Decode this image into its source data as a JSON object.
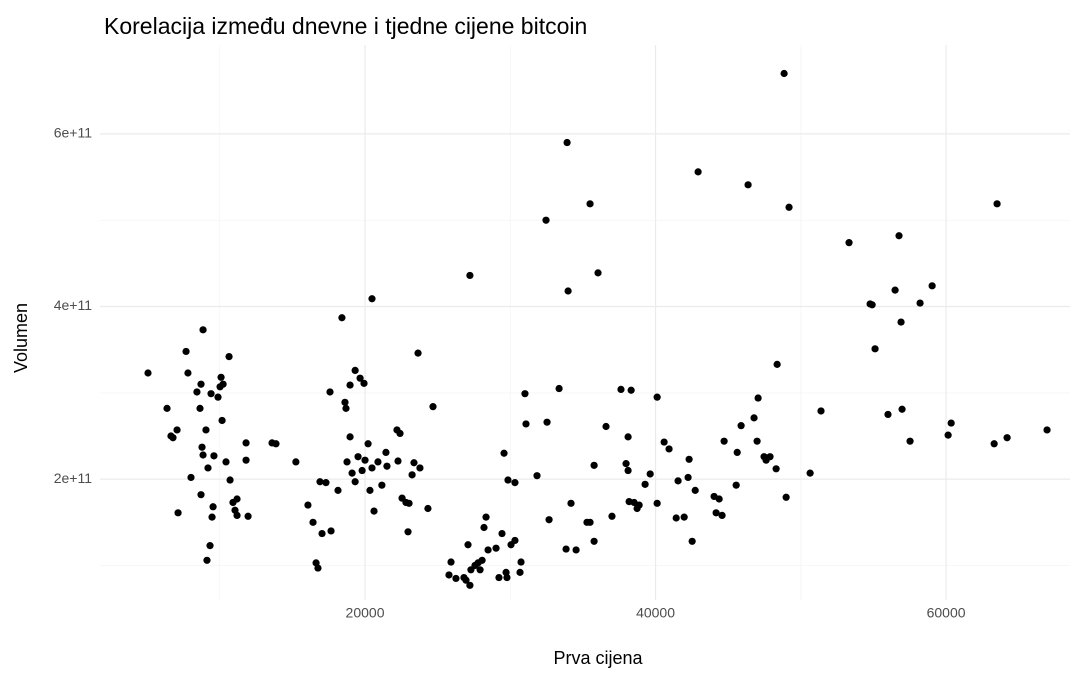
{
  "chart_data": {
    "type": "scatter",
    "title": "Korelacija između dnevne i tjedne cijene bitcoin",
    "x_label": "Prva cijena",
    "y_label": "Volumen",
    "color": "#000000",
    "grid": true,
    "xlim": [
      1756,
      68530
    ],
    "ylim": [
      60000000000,
      703000000000
    ],
    "xticks": [
      20000,
      40000,
      60000
    ],
    "xminor": [
      10000,
      30000,
      50000
    ],
    "yticks": [
      {
        "value": 200000000000,
        "label": "2e+11"
      },
      {
        "value": 400000000000,
        "label": "4e+11"
      },
      {
        "value": 600000000000,
        "label": "6e+11"
      }
    ],
    "yminor": [
      100000000000,
      300000000000,
      500000000000
    ],
    "x": [
      5060,
      6370,
      6640,
      6780,
      7060,
      7130,
      7680,
      7810,
      8020,
      8430,
      8640,
      8710,
      8850,
      8710,
      8780,
      8850,
      9050,
      9120,
      9190,
      9330,
      9400,
      9470,
      9540,
      9600,
      9880,
      10020,
      10090,
      10160,
      10230,
      10430,
      10640,
      10710,
      10910,
      11050,
      11190,
      11190,
      11810,
      11810,
      11950,
      13600,
      13870,
      15240,
      16070,
      16420,
      16630,
      16760,
      16900,
      17040,
      17310,
      17590,
      17660,
      18140,
      18410,
      18620,
      18690,
      18760,
      18970,
      18970,
      19110,
      19320,
      19320,
      19520,
      19660,
      19800,
      19930,
      20000,
      20210,
      20480,
      20340,
      20480,
      20620,
      20890,
      21160,
      21440,
      21510,
      22200,
      22270,
      22410,
      22550,
      22820,
      22960,
      23030,
      23240,
      23370,
      23650,
      23780,
      24330,
      24680,
      25780,
      25920,
      26260,
      26810,
      26950,
      27090,
      27220,
      27220,
      27290,
      27570,
      27780,
      27920,
      28060,
      28190,
      28330,
      28470,
      29020,
      29220,
      29430,
      29570,
      29770,
      29710,
      29840,
      30050,
      30320,
      30320,
      30670,
      30740,
      31010,
      31080,
      31840,
      32460,
      32530,
      32670,
      33360,
      33910,
      33980,
      33840,
      34180,
      34530,
      35280,
      35490,
      35490,
      35770,
      35770,
      36040,
      36590,
      37000,
      37620,
      37970,
      38110,
      38110,
      38180,
      38320,
      38520,
      38730,
      38870,
      39280,
      39630,
      40110,
      40110,
      40590,
      40930,
      41420,
      41550,
      41970,
      42240,
      42310,
      42520,
      42730,
      42930,
      44030,
      44170,
      44380,
      44580,
      44720,
      45550,
      45620,
      45890,
      46370,
      46780,
      46990,
      47060,
      47470,
      47610,
      47880,
      48300,
      48370,
      48850,
      48990,
      49190,
      50640,
      51390,
      53320,
      54770,
      54910,
      55110,
      56000,
      56490,
      56760,
      56900,
      56970,
      57520,
      58210,
      59040,
      60140,
      60350,
      63310,
      63510,
      64200,
      66950
    ],
    "values": [
      323000000000.0,
      282000000000.0,
      250000000000.0,
      248000000000.0,
      257000000000.0,
      161000000000.0,
      348000000000.0,
      323000000000.0,
      202000000000.0,
      301000000000.0,
      282000000000.0,
      310000000000.0,
      373000000000.0,
      182000000000.0,
      237000000000.0,
      228000000000.0,
      257000000000.0,
      106000000000.0,
      213000000000.0,
      123000000000.0,
      299000000000.0,
      156000000000.0,
      168000000000.0,
      227000000000.0,
      295000000000.0,
      307000000000.0,
      318000000000.0,
      268000000000.0,
      310000000000.0,
      220000000000.0,
      342000000000.0,
      199000000000.0,
      173000000000.0,
      164000000000.0,
      177000000000.0,
      158000000000.0,
      242000000000.0,
      222000000000.0,
      157000000000.0,
      242000000000.0,
      241000000000.0,
      220000000000.0,
      170000000000.0,
      150000000000.0,
      103000000000.0,
      97000000000.0,
      197000000000.0,
      137000000000.0,
      196000000000.0,
      301000000000.0,
      140000000000.0,
      187000000000.0,
      387000000000.0,
      289000000000.0,
      282000000000.0,
      220000000000.0,
      249000000000.0,
      309000000000.0,
      207000000000.0,
      326000000000.0,
      197000000000.0,
      226000000000.0,
      317000000000.0,
      210000000000.0,
      311000000000.0,
      222000000000.0,
      241000000000.0,
      409000000000.0,
      187000000000.0,
      213000000000.0,
      163000000000.0,
      220000000000.0,
      193000000000.0,
      231000000000.0,
      215000000000.0,
      257000000000.0,
      221000000000.0,
      253000000000.0,
      178000000000.0,
      173000000000.0,
      139000000000.0,
      172000000000.0,
      205000000000.0,
      219000000000.0,
      346000000000.0,
      213000000000.0,
      166000000000.0,
      284000000000.0,
      89000000000.0,
      104000000000.0,
      85000000000.0,
      86000000000.0,
      83000000000.0,
      124000000000.0,
      436000000000.0,
      77000000000.0,
      95000000000.0,
      100000000000.0,
      103000000000.0,
      95000000000.0,
      106000000000.0,
      144000000000.0,
      156000000000.0,
      118000000000.0,
      120000000000.0,
      86000000000.0,
      137000000000.0,
      230000000000.0,
      86000000000.0,
      92000000000.0,
      199000000000.0,
      124000000000.0,
      129000000000.0,
      196000000000.0,
      92000000000.0,
      104000000000.0,
      299000000000.0,
      264000000000.0,
      204000000000.0,
      500000000000.0,
      266000000000.0,
      153000000000.0,
      305000000000.0,
      590000000000.0,
      418000000000.0,
      119000000000.0,
      172000000000.0,
      118000000000.0,
      150000000000.0,
      150000000000.0,
      519000000000.0,
      216000000000.0,
      128000000000.0,
      439000000000.0,
      261000000000.0,
      157000000000.0,
      304000000000.0,
      218000000000.0,
      249000000000.0,
      210000000000.0,
      174000000000.0,
      303000000000.0,
      173000000000.0,
      166000000000.0,
      170000000000.0,
      194000000000.0,
      206000000000.0,
      295000000000.0,
      172000000000.0,
      243000000000.0,
      235000000000.0,
      155000000000.0,
      198000000000.0,
      156000000000.0,
      202000000000.0,
      223000000000.0,
      128000000000.0,
      187000000000.0,
      556000000000.0,
      180000000000.0,
      161000000000.0,
      177000000000.0,
      158000000000.0,
      244000000000.0,
      193000000000.0,
      231000000000.0,
      262000000000.0,
      541000000000.0,
      271000000000.0,
      244000000000.0,
      294000000000.0,
      226000000000.0,
      222000000000.0,
      226000000000.0,
      212000000000.0,
      333000000000.0,
      670000000000.0,
      179000000000.0,
      515000000000.0,
      207000000000.0,
      279000000000.0,
      474000000000.0,
      403000000000.0,
      402000000000.0,
      351000000000.0,
      275000000000.0,
      419000000000.0,
      482000000000.0,
      382000000000.0,
      281000000000.0,
      244000000000.0,
      404000000000.0,
      424000000000.0,
      251000000000.0,
      265000000000.0,
      241000000000.0,
      519000000000.0,
      248000000000.0,
      257000000000.0
    ]
  }
}
